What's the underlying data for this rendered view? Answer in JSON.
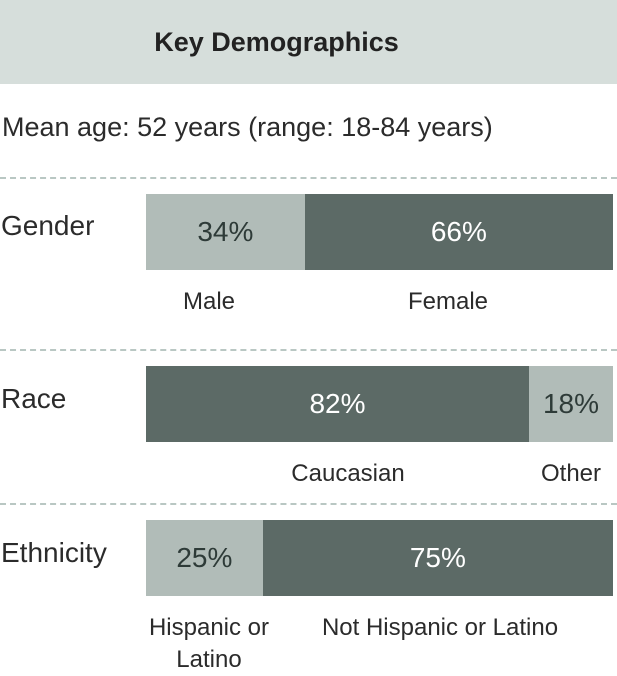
{
  "header": {
    "title": "Key Demographics"
  },
  "mean_age": "Mean age: 52 years (range: 18-84 years)",
  "colors": {
    "header_bg": "#d6dedb",
    "light": "#b1bcb8",
    "dark": "#5c6a66",
    "divider": "#b9c7c3"
  },
  "chart_data": [
    {
      "type": "bar",
      "row_label": "Gender",
      "segments": [
        {
          "category": "Male",
          "value": 34,
          "label": "34%",
          "shade": "light"
        },
        {
          "category": "Female",
          "value": 66,
          "label": "66%",
          "shade": "dark"
        }
      ]
    },
    {
      "type": "bar",
      "row_label": "Race",
      "segments": [
        {
          "category": "Caucasian",
          "value": 82,
          "label": "82%",
          "shade": "dark"
        },
        {
          "category": "Other",
          "value": 18,
          "label": "18%",
          "shade": "light"
        }
      ]
    },
    {
      "type": "bar",
      "row_label": "Ethnicity",
      "segments": [
        {
          "category": "Hispanic or Latino",
          "value": 25,
          "label": "25%",
          "shade": "light"
        },
        {
          "category": "Not Hispanic or Latino",
          "value": 75,
          "label": "75%",
          "shade": "dark"
        }
      ]
    }
  ]
}
